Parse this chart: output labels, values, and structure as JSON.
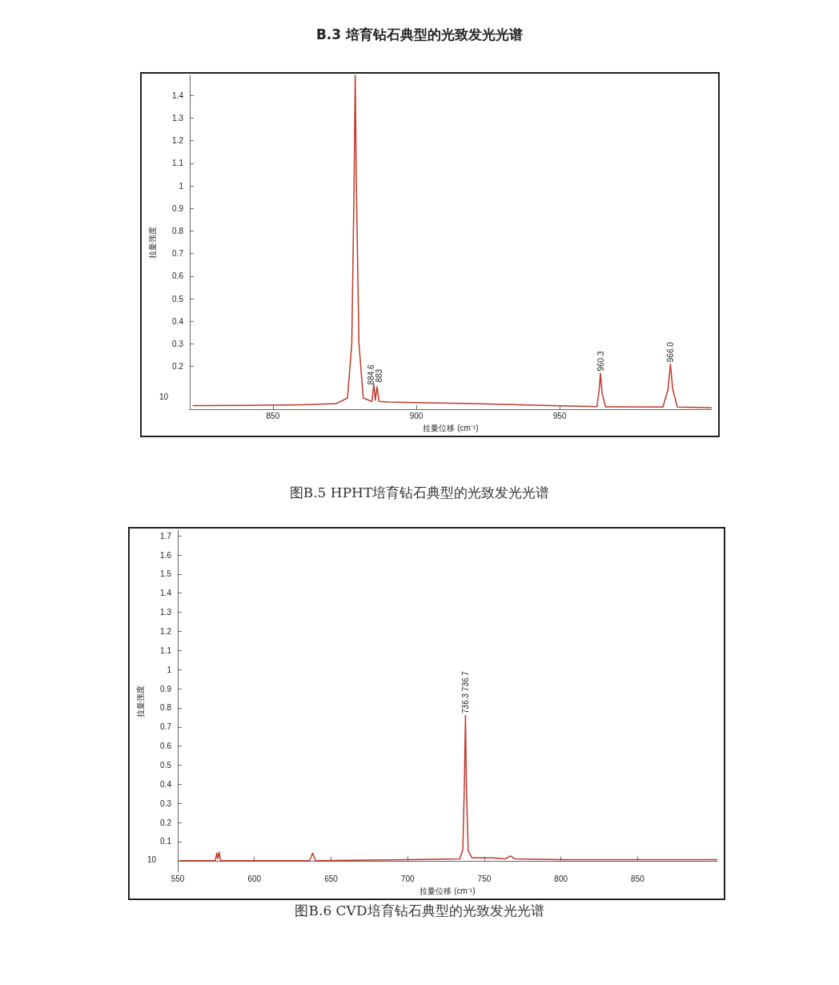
{
  "chart_data": [
    {
      "type": "line",
      "title": "B.3 培育钻石典型的光致发光光谱",
      "subtitle": "图B.5 HPHT培育钻石典型的光致发光光谱",
      "xlabel": "拉曼位移 (cm⁻¹)",
      "ylabel": "拉曼强度",
      "xlim": [
        821,
        1003
      ],
      "xticks": [
        850,
        900,
        950
      ],
      "ylim": [
        0.01,
        1.49
      ],
      "yticks": [
        0.2,
        0.3,
        0.4,
        0.5,
        0.6,
        0.7,
        0.8,
        0.9,
        1.0,
        1.1,
        1.2,
        1.3,
        1.4
      ],
      "grid": false,
      "marker": "none",
      "series": [
        {
          "color": "#c0392b",
          "x": [
            822,
            840,
            860,
            872,
            876,
            877.5,
            878.3,
            878.7,
            879.1,
            880,
            881.5,
            884.5,
            885.2,
            885.7,
            886.3,
            887,
            890,
            920,
            950,
            963,
            963.8,
            964.2,
            964.8,
            966,
            986,
            987.8,
            988.6,
            989.4,
            991,
            1003
          ],
          "values": [
            0.026,
            0.027,
            0.03,
            0.035,
            0.06,
            0.3,
            1.0,
            1.49,
            1.0,
            0.3,
            0.06,
            0.045,
            0.12,
            0.05,
            0.11,
            0.045,
            0.042,
            0.035,
            0.025,
            0.022,
            0.1,
            0.17,
            0.08,
            0.021,
            0.02,
            0.1,
            0.21,
            0.1,
            0.02,
            0.017
          ]
        }
      ],
      "annotations": [
        "10",
        {
          "text": "883",
          "x": 885.2,
          "y": 0.12
        },
        {
          "text": "884.6",
          "x": 886.3,
          "y": 0.11
        },
        {
          "text": "960.3",
          "x": 964.2,
          "y": 0.17
        },
        {
          "text": "966.0",
          "x": 988.6,
          "y": 0.21
        }
      ]
    },
    {
      "type": "line",
      "subtitle": "图B.6 CVD培育钻石典型的光致发光光谱",
      "xlabel": "拉曼位移 (cm⁻¹)",
      "ylabel": "拉曼强度",
      "xlim": [
        550,
        902
      ],
      "xticks": [
        550,
        600,
        650,
        700,
        750,
        800,
        850
      ],
      "ylim": [
        -0.06,
        1.73
      ],
      "yticks": [
        0.1,
        0.2,
        0.3,
        0.4,
        0.5,
        0.6,
        0.7,
        0.8,
        0.9,
        1.0,
        1.1,
        1.2,
        1.3,
        1.4,
        1.5,
        1.6,
        1.7
      ],
      "grid": false,
      "marker": "none",
      "series": [
        {
          "color": "#c0392b",
          "x": [
            551,
            570,
            574.5,
            575.5,
            576.2,
            577,
            578,
            636,
            638,
            640,
            700,
            734,
            736,
            737,
            737.7,
            738.3,
            739.5,
            742,
            755,
            764,
            767,
            770,
            800,
            902
          ],
          "values": [
            0.0,
            0.0,
            0.0,
            0.04,
            0.01,
            0.045,
            0.0,
            0.0,
            0.04,
            0.0,
            0.005,
            0.01,
            0.06,
            0.4,
            0.76,
            0.4,
            0.05,
            0.015,
            0.015,
            0.01,
            0.025,
            0.01,
            0.005,
            0.005
          ]
        }
      ],
      "annotations": [
        "10",
        {
          "text": "736.3 736.7",
          "x": 737.7,
          "y": 0.76
        }
      ]
    }
  ]
}
